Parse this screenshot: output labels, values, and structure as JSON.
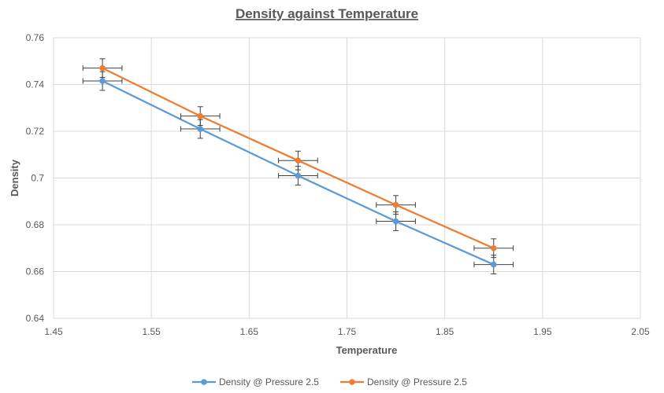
{
  "chart_data": {
    "type": "scatter",
    "title": "Density against Temperature",
    "xlabel": "Temperature",
    "ylabel": "Density",
    "xlim": [
      1.45,
      2.05
    ],
    "ylim": [
      0.64,
      0.76
    ],
    "x_ticks": [
      "1.45",
      "1.55",
      "1.65",
      "1.75",
      "1.85",
      "1.95",
      "2.05"
    ],
    "y_ticks": [
      "0.64",
      "0.66",
      "0.68",
      "0.7",
      "0.72",
      "0.74",
      "0.76"
    ],
    "grid": true,
    "legend_position": "bottom",
    "error_bars": {
      "x": 0.02,
      "y": 0.004
    },
    "series": [
      {
        "name": "Density @ Pressure 2.5",
        "color": "#5B9BD5",
        "x": [
          1.5,
          1.6,
          1.7,
          1.8,
          1.9
        ],
        "y": [
          0.7415,
          0.721,
          0.701,
          0.6815,
          0.663
        ]
      },
      {
        "name": "Density @ Pressure 2.5",
        "color": "#ED7D31",
        "x": [
          1.5,
          1.6,
          1.7,
          1.8,
          1.9
        ],
        "y": [
          0.747,
          0.7265,
          0.7075,
          0.6885,
          0.67
        ]
      }
    ]
  }
}
